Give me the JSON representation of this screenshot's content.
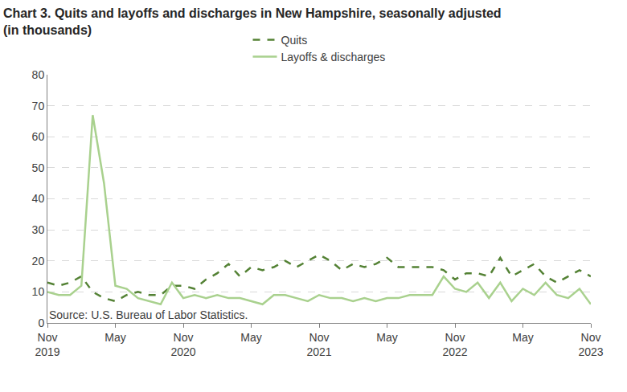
{
  "chart_data": {
    "type": "line",
    "title": "Chart 3. Quits and layoffs and discharges in New Hampshire, seasonally adjusted (in thousands)",
    "source": "Source: U.S. Bureau of Labor Statistics.",
    "categories": [
      "Nov 2019",
      null,
      null,
      null,
      null,
      null,
      "May",
      null,
      null,
      null,
      null,
      null,
      "Nov 2020",
      null,
      null,
      null,
      null,
      null,
      "May",
      null,
      null,
      null,
      null,
      null,
      "Nov 2021",
      null,
      null,
      null,
      null,
      null,
      "May",
      null,
      null,
      null,
      null,
      null,
      "Nov 2022",
      null,
      null,
      null,
      null,
      null,
      "May",
      null,
      null,
      null,
      null,
      null,
      "Nov 2023"
    ],
    "series": [
      {
        "name": "Quits",
        "color": "#548235",
        "line_style": "dash",
        "values": [
          13,
          12,
          13,
          15,
          10,
          8,
          7,
          9,
          10,
          9,
          9,
          12,
          12,
          11,
          14,
          16,
          19,
          15,
          18,
          17,
          18,
          20,
          18,
          20,
          22,
          20,
          17,
          19,
          18,
          19,
          21,
          18,
          18,
          18,
          18,
          17,
          14,
          16,
          16,
          15,
          21,
          15,
          17,
          19,
          15,
          13,
          15,
          17,
          15
        ]
      },
      {
        "name": "Layoffs & discharges",
        "color": "#a9d18e",
        "line_style": "solid",
        "values": [
          10,
          9,
          9,
          12,
          67,
          45,
          12,
          11,
          8,
          7,
          6,
          13,
          8,
          9,
          8,
          9,
          8,
          8,
          7,
          6,
          9,
          9,
          8,
          7,
          9,
          8,
          8,
          7,
          8,
          7,
          8,
          8,
          9,
          9,
          9,
          15,
          11,
          10,
          13,
          8,
          13,
          7,
          11,
          9,
          13,
          9,
          8,
          11,
          6
        ]
      }
    ],
    "ylim": [
      0,
      80
    ],
    "yticks": [
      0,
      10,
      20,
      30,
      40,
      50,
      60,
      70,
      80
    ],
    "grid": true,
    "legend": "top"
  }
}
